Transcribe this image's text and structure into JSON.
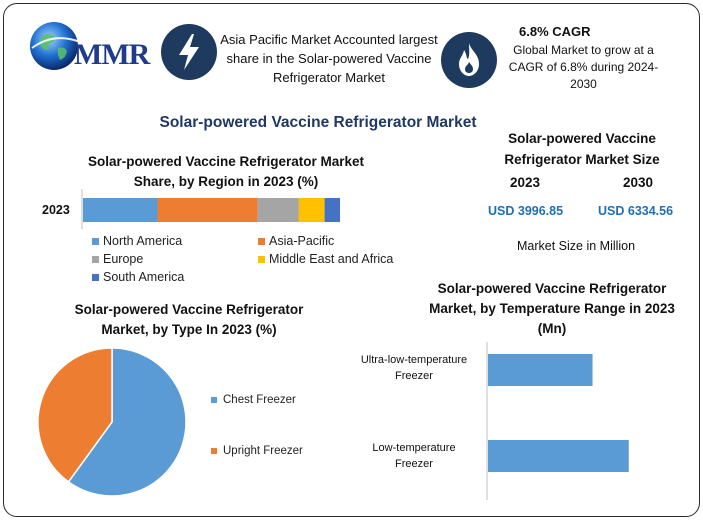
{
  "brand": {
    "logo_text": "MMR"
  },
  "highlights": {
    "region_text": "Asia Pacific Market Accounted largest share in the Solar-powered Vaccine Refrigerator Market",
    "cagr_title": "6.8% CAGR",
    "cagr_text": "Global Market to grow at a CAGR of 6.8% during 2024-2030"
  },
  "main_title": "Solar-powered Vaccine Refrigerator Market",
  "market_size": {
    "title": "Solar-powered Vaccine Refrigerator Market Size",
    "year_a": "2023",
    "year_b": "2030",
    "value_a": "USD 3996.85",
    "value_b": "USD 6334.56",
    "unit": "Market Size in Million"
  },
  "colors": {
    "north_america": "#5b9bd5",
    "asia_pacific": "#ed7d31",
    "europe": "#a5a5a5",
    "middle_east": "#ffc000",
    "south_america": "#4472c4",
    "icon_bg": "#1e3a5f",
    "title": "#1f3864",
    "usd": "#1f6fb5"
  },
  "icons": {
    "region": "lightning-icon",
    "cagr": "flame-icon",
    "logo": "globe-icon"
  },
  "chart_data": [
    {
      "type": "bar",
      "orientation": "horizontal-stacked",
      "title": "Solar-powered Vaccine Refrigerator Market Share, by Region in 2023 (%)",
      "categories": [
        "2023"
      ],
      "series": [
        {
          "name": "North America",
          "values": [
            29
          ]
        },
        {
          "name": "Asia-Pacific",
          "values": [
            39
          ]
        },
        {
          "name": "Europe",
          "values": [
            16
          ]
        },
        {
          "name": "Middle East and Africa",
          "values": [
            10
          ]
        },
        {
          "name": "South America",
          "values": [
            6
          ]
        }
      ],
      "xlim": [
        0,
        100
      ],
      "legend": "bottom"
    },
    {
      "type": "pie",
      "title": "Solar-powered Vaccine Refrigerator Market, by Type In 2023 (%)",
      "categories": [
        "Chest Freezer",
        "Upright Freezer"
      ],
      "values": [
        60,
        40
      ],
      "legend": "right"
    },
    {
      "type": "bar",
      "orientation": "horizontal",
      "title": "Solar-powered Vaccine Refrigerator Market, by Temperature Range in 2023 (Mn)",
      "categories": [
        "Ultra-low-temperature Freezer",
        "Low-temperature Freezer"
      ],
      "category_lines": [
        [
          "Ultra-low-temperature",
          "Freezer"
        ],
        [
          "Low-temperature",
          "Freezer"
        ]
      ],
      "values": [
        1530,
        2060
      ],
      "xlim": [
        0,
        3000
      ],
      "grid": false
    }
  ]
}
